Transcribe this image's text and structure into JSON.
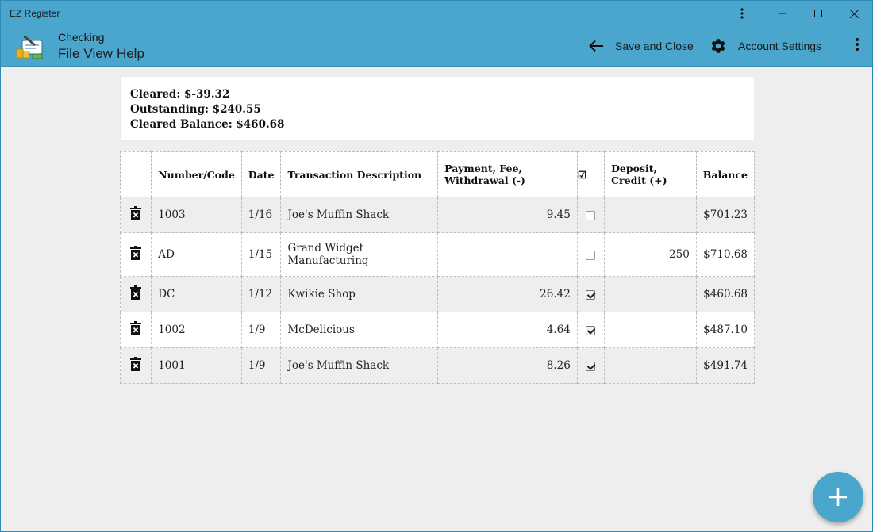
{
  "window": {
    "title": "EZ Register"
  },
  "appbar": {
    "account": "Checking",
    "menu": [
      "File",
      "View",
      "Help"
    ],
    "save_close": "Save and Close",
    "settings": "Account Settings"
  },
  "summary": {
    "cleared": "Cleared: $-39.32",
    "outstanding": "Outstanding: $240.55",
    "cleared_balance": "Cleared Balance: $460.68"
  },
  "table": {
    "headers": {
      "number": "Number/Code",
      "date": "Date",
      "description": "Transaction Description",
      "payment": "Payment, Fee, Withdrawal (-)",
      "cleared": "☑",
      "deposit": "Deposit, Credit (+)",
      "balance": "Balance"
    },
    "rows": [
      {
        "number": "1003",
        "date": "1/16",
        "description": "Joe's Muffin Shack",
        "payment": "9.45",
        "cleared": false,
        "deposit": "",
        "balance": "$701.23"
      },
      {
        "number": "AD",
        "date": "1/15",
        "description": "Grand Widget Manufacturing",
        "payment": "",
        "cleared": false,
        "deposit": "250",
        "balance": "$710.68"
      },
      {
        "number": "DC",
        "date": "1/12",
        "description": "Kwikie Shop",
        "payment": "26.42",
        "cleared": true,
        "deposit": "",
        "balance": "$460.68"
      },
      {
        "number": "1002",
        "date": "1/9",
        "description": "McDelicious",
        "payment": "4.64",
        "cleared": true,
        "deposit": "",
        "balance": "$487.10"
      },
      {
        "number": "1001",
        "date": "1/9",
        "description": "Joe's Muffin Shack",
        "payment": "8.26",
        "cleared": true,
        "deposit": "",
        "balance": "$491.74"
      }
    ]
  },
  "colors": {
    "accent": "#4aa6cd",
    "payment": "#e53935",
    "deposit": "#43a047"
  },
  "icons": [
    "app-logo-icon",
    "back-arrow-icon",
    "gear-icon",
    "more-vert-icon",
    "trash-icon",
    "add-icon"
  ]
}
